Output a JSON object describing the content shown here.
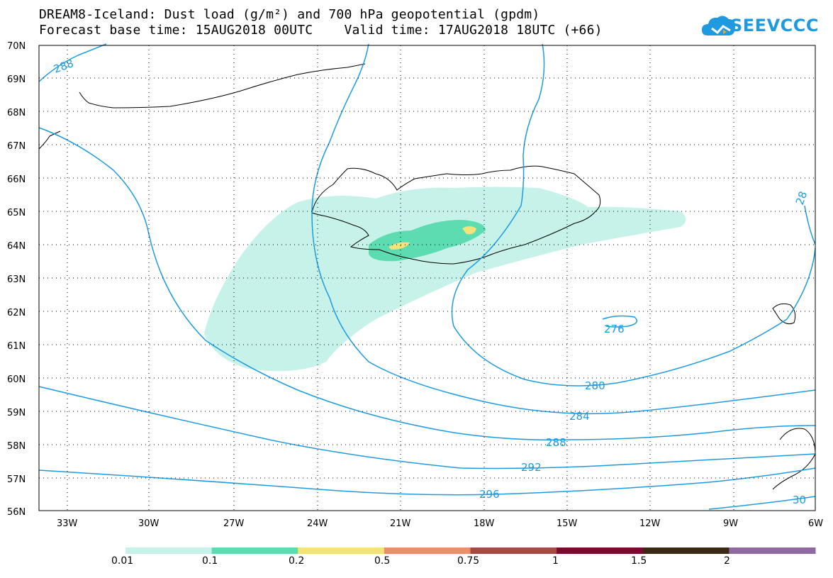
{
  "title": {
    "line1": "DREAM8-Iceland: Dust load (g/m²) and 700 hPa geopotential (gpdm)",
    "line2": "Forecast base time: 15AUG2018 00UTC    Valid time: 17AUG2018 18UTC (+66)"
  },
  "logo": {
    "text": "SEEVCCC",
    "icon": "cloud-logo-icon",
    "color": "#1e9be0"
  },
  "map": {
    "lat_range": [
      56,
      70
    ],
    "lon_range": [
      -34.2,
      -6
    ],
    "lat_ticks": [
      "70N",
      "69N",
      "68N",
      "67N",
      "66N",
      "65N",
      "64N",
      "63N",
      "62N",
      "61N",
      "60N",
      "59N",
      "58N",
      "57N",
      "56N"
    ],
    "lon_ticks": [
      "33W",
      "30W",
      "27W",
      "24W",
      "21W",
      "18W",
      "15W",
      "12W",
      "9W",
      "6W"
    ],
    "grid": "dotted"
  },
  "contours": {
    "color": "#1e9be0",
    "labels": [
      "288",
      "280",
      "284",
      "288",
      "292",
      "296",
      "276",
      "28",
      "30"
    ]
  },
  "legend": {
    "colors": [
      "#c6f2ea",
      "#5cdcb0",
      "#f4e27a",
      "#e8906a",
      "#a04c42",
      "#7a0a2e",
      "#3a2a14",
      "#8e6aa0"
    ],
    "labels": [
      "0.01",
      "0.1",
      "0.2",
      "0.5",
      "0.75",
      "1",
      "1.5",
      "2"
    ]
  }
}
